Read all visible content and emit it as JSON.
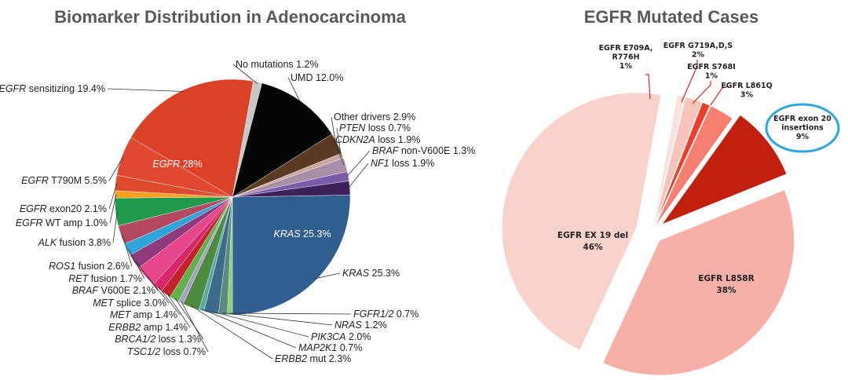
{
  "chart_data": [
    {
      "type": "pie",
      "title": "Biomarker Distribution in Adenocarcinoma",
      "unit": "%",
      "slices": [
        {
          "label": "KRAS 25.3%",
          "inner_label": "KRAS 25.3%",
          "value": 25.3,
          "color": "#2e5f8f"
        },
        {
          "label": "FGFR1/2 0.7%",
          "value": 0.7,
          "color": "#8fce7a"
        },
        {
          "label": "NRAS 1.2%",
          "value": 1.2,
          "color": "#5d8a7e"
        },
        {
          "label": "PIK3CA 2.0%",
          "value": 2.0,
          "color": "#3d6b8a"
        },
        {
          "label": "MAP2K1 0.7%",
          "value": 0.7,
          "color": "#5ea8a3"
        },
        {
          "label": "ERBB2 mut 2.3%",
          "value": 2.3,
          "color": "#4c8a3e"
        },
        {
          "label": "TSC1/2 loss 0.7%",
          "value": 0.7,
          "color": "#a89fc7"
        },
        {
          "label": "BRCA1/2 loss 1.3%",
          "value": 1.3,
          "color": "#62b24a"
        },
        {
          "label": "ERBB2 amp 1.4%",
          "value": 1.4,
          "color": "#c4232e"
        },
        {
          "label": "MET amp 1.4%",
          "value": 1.4,
          "color": "#d8286b"
        },
        {
          "label": "MET splice 3.0%",
          "value": 3.0,
          "color": "#e8468a"
        },
        {
          "label": "BRAF V600E 2.1%",
          "value": 2.1,
          "color": "#8e3a7c"
        },
        {
          "label": "RET fusion 1.7%",
          "value": 1.7,
          "color": "#2ea4d9"
        },
        {
          "label": "ROS1 fusion 2.6%",
          "value": 2.6,
          "color": "#b34861"
        },
        {
          "label": "ALK fusion 3.8%",
          "value": 3.8,
          "color": "#1f9a4a"
        },
        {
          "label": "EGFR WT amp 1.0%",
          "value": 1.0,
          "color": "#f7a123"
        },
        {
          "label": "EGFR exon20 2.1%",
          "value": 2.1,
          "color": "#de4a2c"
        },
        {
          "label": "EGFR T790M 5.5%",
          "value": 5.5,
          "color": "#e04830"
        },
        {
          "label": "EGFR sensitizing 19.4%",
          "inner_label": "EGFR 28%",
          "value": 19.4,
          "color": "#db4127"
        },
        {
          "label": "No mutations 1.2%",
          "value": 1.2,
          "color": "#c7c7c7"
        },
        {
          "label": "UMD 12.0%",
          "value": 12.0,
          "color": "#050505"
        },
        {
          "label": "Other drivers 2.9%",
          "value": 2.9,
          "color": "#5a3a22"
        },
        {
          "label": "PTEN loss 0.7%",
          "value": 0.7,
          "color": "#c9a7a0"
        },
        {
          "label": "CDKN2A loss 1.9%",
          "value": 1.9,
          "color": "#a98fa6"
        },
        {
          "label": "BRAF non-V600E 1.3%",
          "value": 1.3,
          "color": "#7a5ba8"
        },
        {
          "label": "NF1 loss 1.9%",
          "value": 1.9,
          "color": "#3d2158"
        }
      ]
    },
    {
      "type": "pie",
      "title": "EGFR Mutated Cases",
      "unit": "%",
      "highlighted": "EGFR exon 20 insertions 9%",
      "slices": [
        {
          "label_lines": [
            "EGFR L858R",
            "38%"
          ],
          "value": 38,
          "color": "#f6b0a8"
        },
        {
          "label_lines": [
            "EGFR EX 19 del",
            "46%"
          ],
          "value": 46,
          "color": "#fad2cc"
        },
        {
          "label_lines": [
            "EGFR E709A,",
            "R776H",
            "1%"
          ],
          "value": 1,
          "color": "#fbe1dd"
        },
        {
          "label_lines": [
            "EGFR G719A,D,S",
            "2%"
          ],
          "value": 2,
          "color": "#f7c3bb"
        },
        {
          "label_lines": [
            "EGFR S768I",
            "1%"
          ],
          "value": 1,
          "color": "#ef3d2c"
        },
        {
          "label_lines": [
            "EGFR L861Q",
            "3%"
          ],
          "value": 3,
          "color": "#f58070"
        },
        {
          "label_lines": [
            "EGFR exon 20",
            "insertions",
            "9%"
          ],
          "value": 9,
          "color": "#c1200f"
        }
      ]
    }
  ]
}
